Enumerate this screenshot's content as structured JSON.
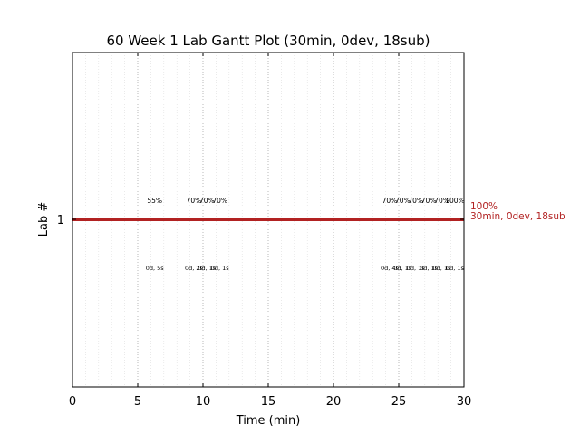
{
  "chart_data": {
    "type": "gantt",
    "title": "60 Week 1 Lab Gantt Plot (30min, 0dev, 18sub)",
    "xlabel": "Time (min)",
    "ylabel": "Lab #",
    "xlim": [
      0,
      30
    ],
    "x_ticks": [
      "0",
      "5",
      "10",
      "15",
      "20",
      "25",
      "30"
    ],
    "y_ticks": [
      "1"
    ],
    "grid": "vertical dotted",
    "series": [
      {
        "lab": 1,
        "start": 0,
        "end": 30,
        "color": "#b22222",
        "end_label_line1": "100%",
        "end_label_line2": "30min, 0dev, 18sub"
      }
    ],
    "annotations_above": [
      {
        "x": 6.3,
        "text": "55%"
      },
      {
        "x": 9.3,
        "text": "70%"
      },
      {
        "x": 10.3,
        "text": "70%"
      },
      {
        "x": 11.3,
        "text": "70%"
      },
      {
        "x": 24.3,
        "text": "70%"
      },
      {
        "x": 25.3,
        "text": "70%"
      },
      {
        "x": 26.3,
        "text": "70%"
      },
      {
        "x": 27.3,
        "text": "70%"
      },
      {
        "x": 28.3,
        "text": "70%"
      },
      {
        "x": 29.3,
        "text": "100%"
      }
    ],
    "annotations_below": [
      {
        "x": 6.3,
        "text": "0d, 5s"
      },
      {
        "x": 9.3,
        "text": "0d, 2s"
      },
      {
        "x": 10.3,
        "text": "0d, 1s"
      },
      {
        "x": 11.3,
        "text": "0d, 1s"
      },
      {
        "x": 24.3,
        "text": "0d, 4s"
      },
      {
        "x": 25.3,
        "text": "0d, 1s"
      },
      {
        "x": 26.3,
        "text": "0d, 1s"
      },
      {
        "x": 27.3,
        "text": "0d, 1s"
      },
      {
        "x": 28.3,
        "text": "0d, 1s"
      },
      {
        "x": 29.3,
        "text": "0d, 1s"
      }
    ]
  }
}
